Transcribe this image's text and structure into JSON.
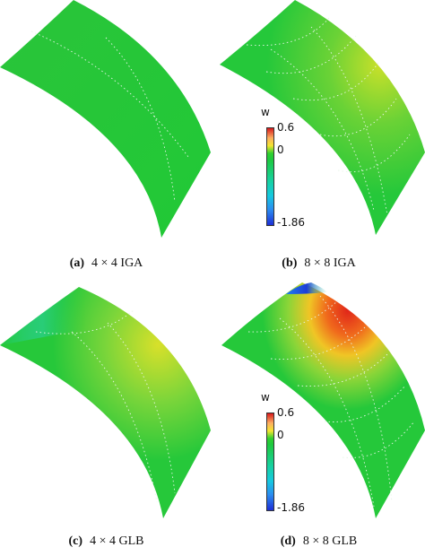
{
  "panels": [
    {
      "id": "a",
      "label": "(a)",
      "text": "4 × 4 IGA"
    },
    {
      "id": "b",
      "label": "(b)",
      "text": "8 × 8 IGA"
    },
    {
      "id": "c",
      "label": "(c)",
      "text": "4 × 4 GLB"
    },
    {
      "id": "d",
      "label": "(d)",
      "text": "8 × 8 GLB"
    }
  ],
  "colorbar": {
    "title": "w",
    "max_label": "0.6",
    "mid_label": "0",
    "min_label": "-1.86",
    "colors": [
      "#d7191c",
      "#fdae61",
      "#f4e531",
      "#2fcf2f",
      "#16d1a3",
      "#16c8e0",
      "#2b8cf0",
      "#1d2fd6"
    ]
  },
  "surface_color": "#25c83a"
}
